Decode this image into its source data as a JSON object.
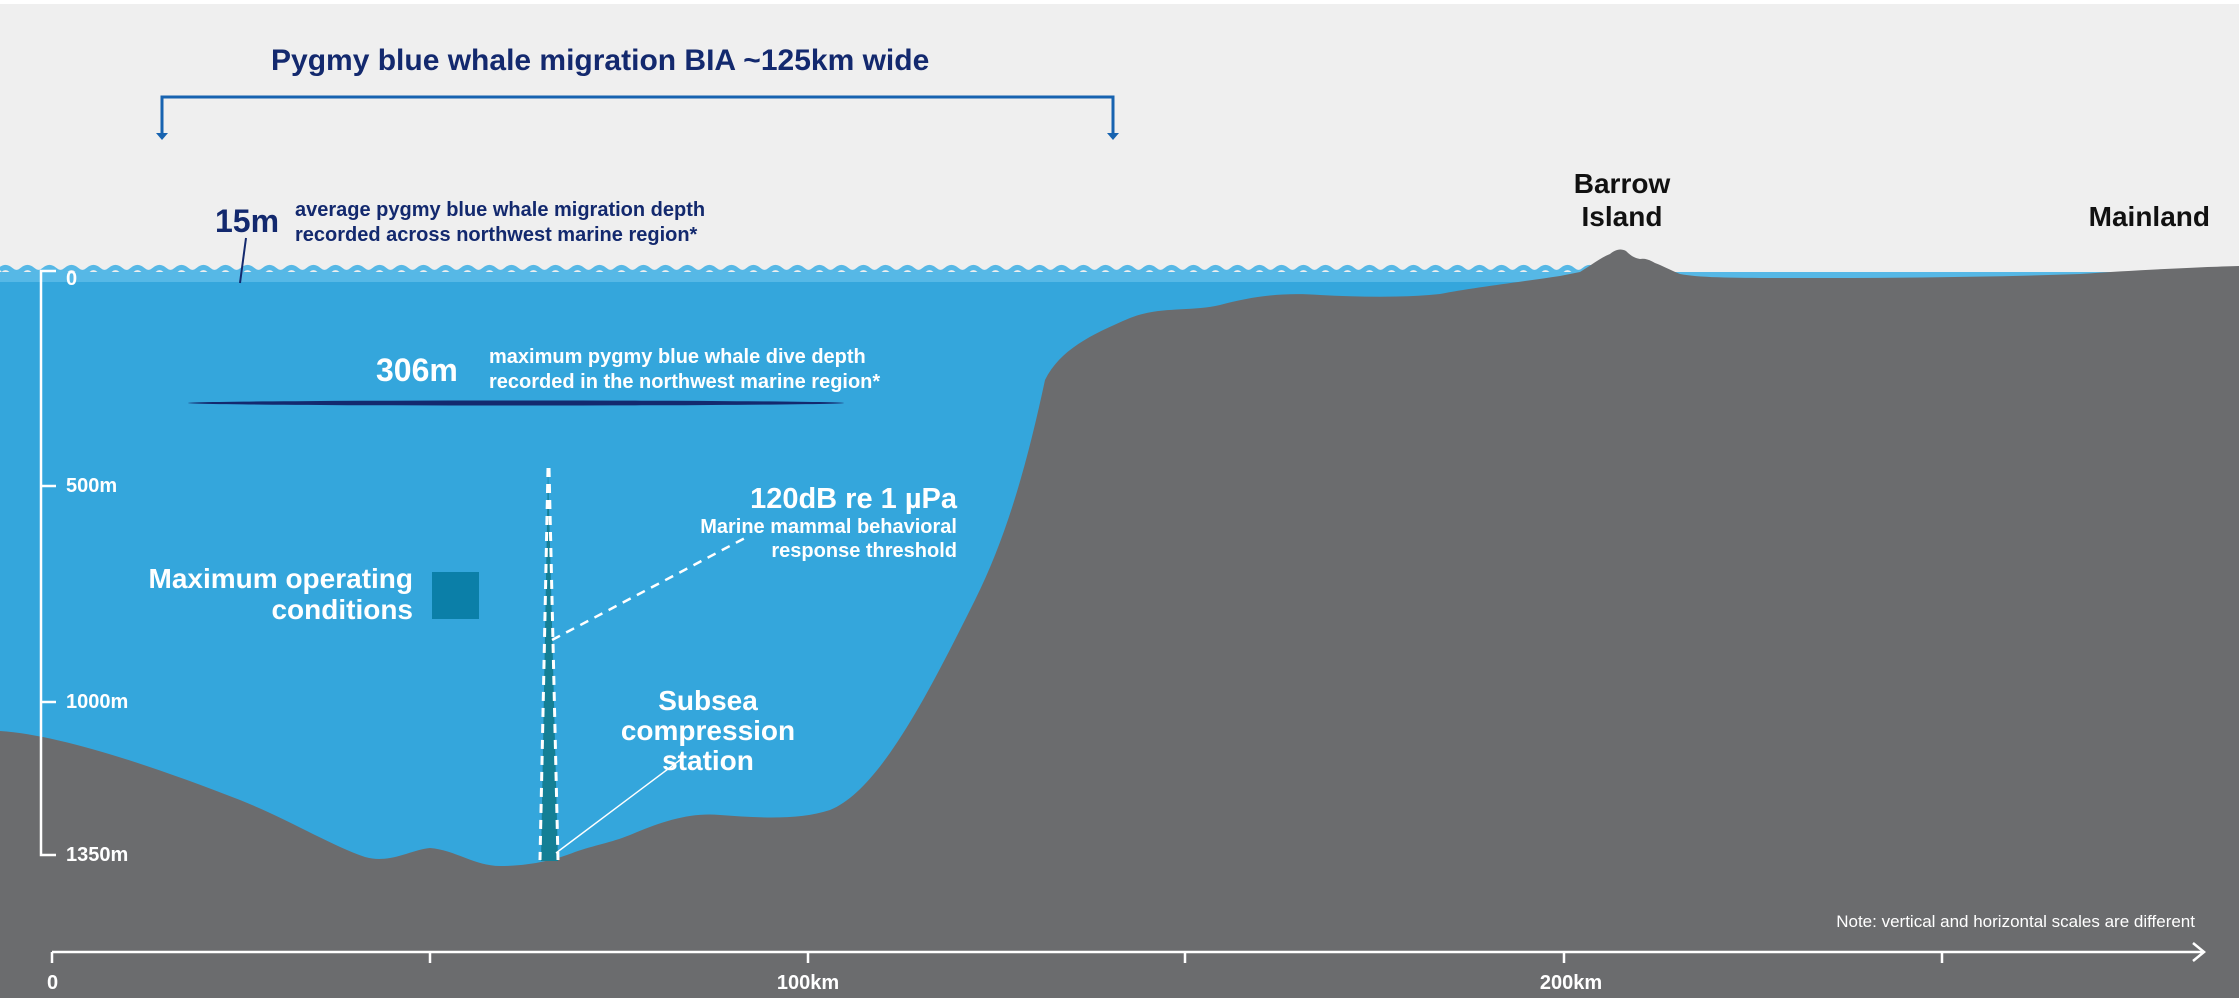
{
  "colors": {
    "sky": "#efefef",
    "ocean": "#34a6dc",
    "ocean_surface": "#56b8e6",
    "land": "#6b6c6e",
    "navy": "#13296e",
    "bracket": "#1763b0",
    "teal_box": "#0b7fa8",
    "plume": "#147f95",
    "white": "#ffffff"
  },
  "header": {
    "title": "Pygmy blue whale migration BIA ~125km wide"
  },
  "annotations": {
    "migration_depth": {
      "value": "15m",
      "line1": "average pygmy blue whale migration depth",
      "line2": "recorded across northwest marine region*"
    },
    "dive_depth": {
      "value": "306m",
      "line1": "maximum pygmy blue whale dive depth",
      "line2": "recorded in the northwest marine region*"
    },
    "noise_threshold": {
      "value": "120dB re 1 µPa",
      "line1": "Marine mammal behavioral",
      "line2": "response threshold"
    },
    "operating": {
      "line1": "Maximum operating",
      "line2": "conditions"
    },
    "station": {
      "line1": "Subsea",
      "line2": "compression",
      "line3": "station"
    },
    "barrow": {
      "line1": "Barrow",
      "line2": "Island"
    },
    "mainland": "Mainland",
    "note": "Note: vertical and horizontal scales are different"
  },
  "depth_axis": {
    "ticks": [
      "0",
      "500m",
      "1000m",
      "1350m"
    ]
  },
  "distance_axis": {
    "ticks": [
      "0",
      "100km",
      "200km"
    ]
  }
}
